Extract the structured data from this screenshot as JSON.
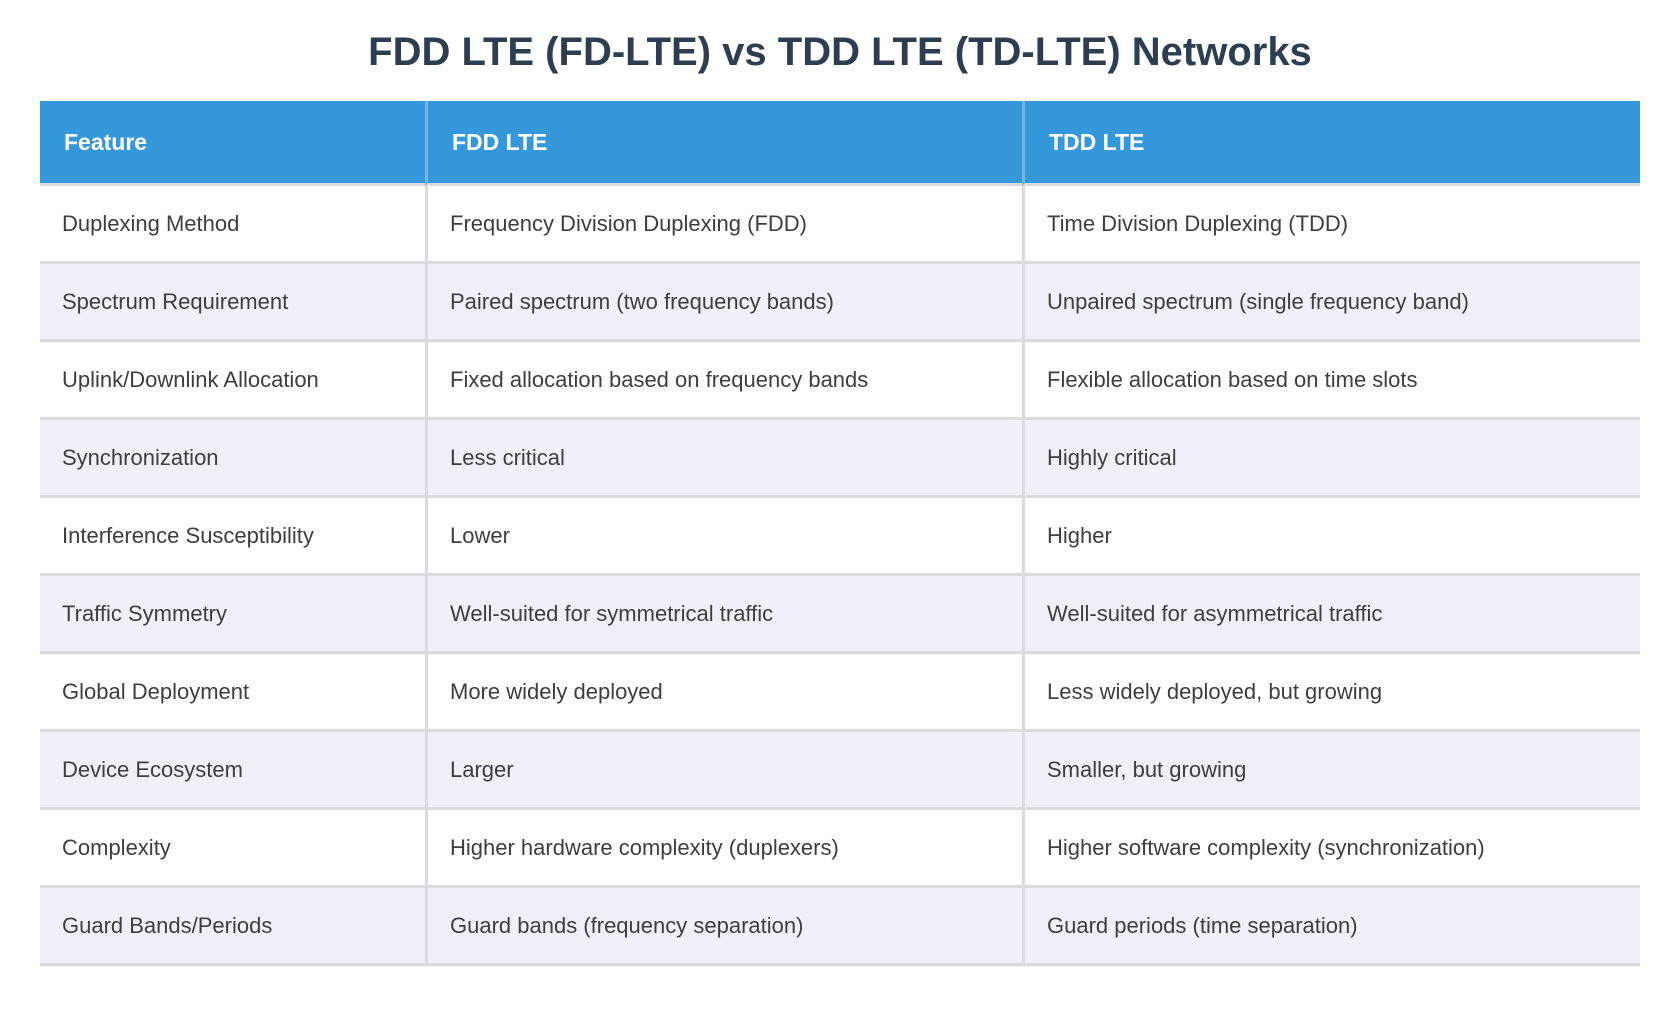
{
  "title": "FDD LTE (FD-LTE) vs TDD LTE (TD-LTE) Networks",
  "chart_data": {
    "type": "table",
    "title": "FDD LTE (FD-LTE) vs TDD LTE (TD-LTE) Networks",
    "columns": [
      "Feature",
      "FDD LTE",
      "TDD LTE"
    ],
    "rows": [
      [
        "Duplexing Method",
        "Frequency Division Duplexing (FDD)",
        "Time Division Duplexing (TDD)"
      ],
      [
        "Spectrum Requirement",
        "Paired spectrum (two frequency bands)",
        "Unpaired spectrum (single frequency band)"
      ],
      [
        "Uplink/Downlink Allocation",
        "Fixed allocation based on frequency bands",
        "Flexible allocation based on time slots"
      ],
      [
        "Synchronization",
        "Less critical",
        "Highly critical"
      ],
      [
        "Interference Susceptibility",
        "Lower",
        "Higher"
      ],
      [
        "Traffic Symmetry",
        "Well-suited for symmetrical traffic",
        "Well-suited for asymmetrical traffic"
      ],
      [
        "Global Deployment",
        "More widely deployed",
        "Less widely deployed, but growing"
      ],
      [
        "Device Ecosystem",
        "Larger",
        "Smaller, but growing"
      ],
      [
        "Complexity",
        "Higher hardware complexity (duplexers)",
        "Higher software complexity (synchronization)"
      ],
      [
        "Guard Bands/Periods",
        "Guard bands (frequency separation)",
        "Guard periods (time separation)"
      ]
    ],
    "layout": {
      "header_position": "top",
      "zebra_striping": true,
      "legend": "none",
      "grid": "cell-borders"
    }
  },
  "colors": {
    "header_bg": "#3498db",
    "header_text": "#ffffff",
    "row_bg": "#ffffff",
    "row_alt_bg": "#eef2f8",
    "divider": "#d9dbde",
    "header_divider": "rgba(255,255,255,0.3)",
    "title_text": "#2c3e50",
    "body_text": "#3e3e3e"
  }
}
